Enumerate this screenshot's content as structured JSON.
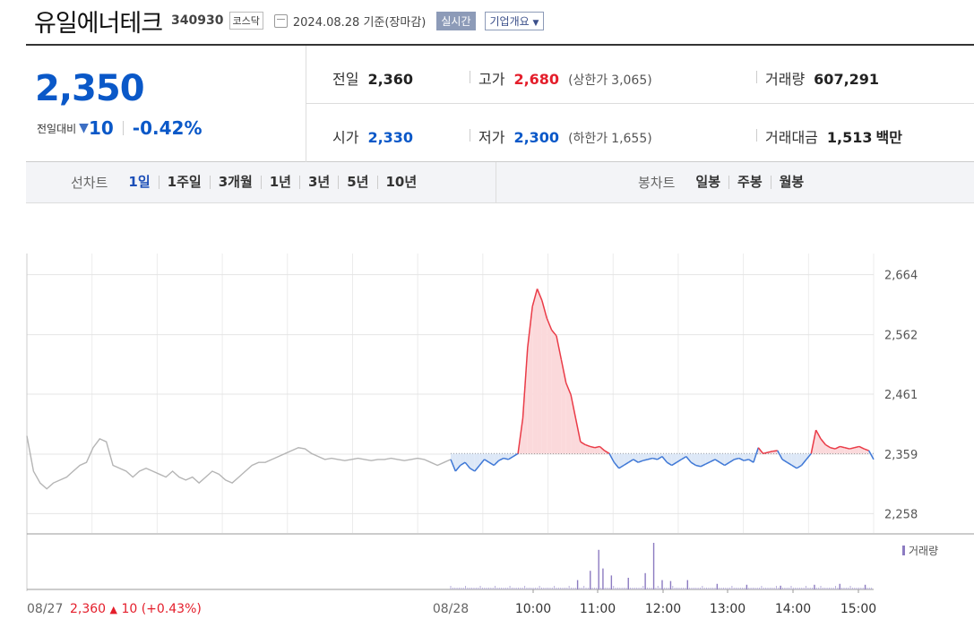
{
  "header": {
    "stock_name": "유일에너테크",
    "stock_code": "340930",
    "market": "코스닥",
    "as_of": "2024.08.28  기준(장마감)",
    "realtime": "실시간",
    "company_info": "기업개요"
  },
  "quote": {
    "price": "2,350",
    "change_label": "전일대비",
    "change": "10",
    "change_pct": "-0.42%",
    "prev_close_label": "전일",
    "prev_close": "2,360",
    "high_label": "고가",
    "high": "2,680",
    "upper_limit_label": "(상한가",
    "upper_limit": "3,065)",
    "volume_label": "거래량",
    "volume": "607,291",
    "open_label": "시가",
    "open": "2,330",
    "low_label": "저가",
    "low": "2,300",
    "lower_limit_label": "(하한가",
    "lower_limit": "1,655)",
    "amount_label": "거래대금",
    "amount": "1,513",
    "amount_unit": "백만"
  },
  "toolbar": {
    "line_chart_label": "선차트",
    "periods": [
      "1일",
      "1주일",
      "3개월",
      "1년",
      "3년",
      "5년",
      "10년"
    ],
    "active_period": "1일",
    "candle_chart_label": "봉차트",
    "candles": [
      "일봉",
      "주봉",
      "월봉"
    ]
  },
  "chart_data": {
    "type": "line",
    "y_ticks": [
      "2,664",
      "2,562",
      "2,461",
      "2,359",
      "2,258"
    ],
    "y_tick_values": [
      2664,
      2562,
      2461,
      2359,
      2258
    ],
    "ylim": [
      2225,
      2700
    ],
    "baseline": 2360,
    "x_ticks": [
      "08/27",
      "08/28",
      "10:00",
      "11:00",
      "12:00",
      "13:00",
      "14:00",
      "15:00"
    ],
    "prev_day_summary": {
      "date": "08/27",
      "close": "2,360",
      "arrow": "▲",
      "change": "10",
      "pct": "(+0.43%)"
    },
    "volume_legend": "거래량",
    "prev_day_series": [
      2390,
      2330,
      2310,
      2300,
      2310,
      2315,
      2320,
      2330,
      2340,
      2345,
      2370,
      2385,
      2380,
      2340,
      2335,
      2330,
      2320,
      2330,
      2335,
      2330,
      2325,
      2320,
      2330,
      2320,
      2315,
      2320,
      2310,
      2320,
      2330,
      2325,
      2315,
      2310,
      2320,
      2330,
      2340,
      2345,
      2345,
      2350,
      2355,
      2360,
      2365,
      2370,
      2368,
      2360,
      2355,
      2350,
      2352,
      2350,
      2348,
      2350,
      2352,
      2350,
      2348,
      2350,
      2350,
      2352,
      2350,
      2348,
      2350,
      2352,
      2350,
      2345,
      2340,
      2345,
      2350
    ],
    "today_series": [
      2350,
      2330,
      2340,
      2345,
      2335,
      2330,
      2340,
      2350,
      2345,
      2340,
      2348,
      2352,
      2350,
      2355,
      2360,
      2420,
      2540,
      2610,
      2640,
      2620,
      2590,
      2570,
      2560,
      2520,
      2480,
      2460,
      2420,
      2380,
      2375,
      2372,
      2370,
      2372,
      2365,
      2360,
      2345,
      2335,
      2340,
      2345,
      2350,
      2345,
      2348,
      2350,
      2352,
      2350,
      2355,
      2345,
      2340,
      2345,
      2350,
      2355,
      2345,
      2340,
      2338,
      2342,
      2346,
      2350,
      2345,
      2340,
      2345,
      2350,
      2352,
      2348,
      2350,
      2345,
      2370,
      2360,
      2362,
      2364,
      2365,
      2350,
      2345,
      2340,
      2335,
      2340,
      2350,
      2360,
      2400,
      2385,
      2375,
      2370,
      2368,
      2372,
      2370,
      2368,
      2370,
      2372,
      2368,
      2365,
      2350
    ],
    "volume_spikes": [
      [
        0.3,
        0.2
      ],
      [
        0.33,
        0.4
      ],
      [
        0.35,
        0.85
      ],
      [
        0.36,
        0.45
      ],
      [
        0.38,
        0.3
      ],
      [
        0.42,
        0.25
      ],
      [
        0.46,
        0.35
      ],
      [
        0.48,
        1.0
      ],
      [
        0.5,
        0.2
      ],
      [
        0.52,
        0.18
      ],
      [
        0.56,
        0.2
      ],
      [
        0.63,
        0.12
      ],
      [
        0.7,
        0.1
      ],
      [
        0.78,
        0.08
      ],
      [
        0.86,
        0.1
      ],
      [
        0.92,
        0.12
      ],
      [
        0.98,
        0.1
      ]
    ]
  }
}
